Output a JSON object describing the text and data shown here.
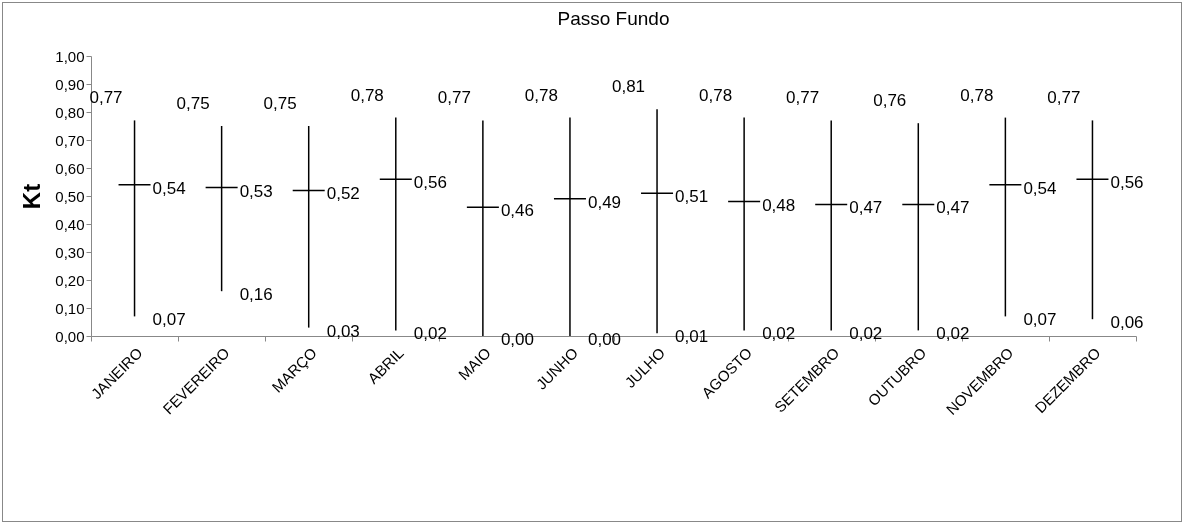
{
  "chart_data": {
    "type": "candlestick",
    "title": "Passo Fundo",
    "ylabel": "Kt",
    "categories": [
      "JANEIRO",
      "FEVEREIRO",
      "MARÇO",
      "ABRIL",
      "MAIO",
      "JUNHO",
      "JULHO",
      "AGOSTO",
      "SETEMBRO",
      "OUTUBRO",
      "NOVEMBRO",
      "DEZEMBRO"
    ],
    "ohlc": [
      [
        0.54,
        0.77,
        0.07,
        0.54
      ],
      [
        0.53,
        0.75,
        0.16,
        0.53
      ],
      [
        0.52,
        0.75,
        0.03,
        0.52
      ],
      [
        0.56,
        0.78,
        0.02,
        0.56
      ],
      [
        0.46,
        0.77,
        0.0,
        0.46
      ],
      [
        0.49,
        0.78,
        0.0,
        0.49
      ],
      [
        0.51,
        0.81,
        0.01,
        0.51
      ],
      [
        0.48,
        0.78,
        0.02,
        0.48
      ],
      [
        0.47,
        0.77,
        0.02,
        0.47
      ],
      [
        0.47,
        0.76,
        0.02,
        0.47
      ],
      [
        0.54,
        0.78,
        0.07,
        0.54
      ],
      [
        0.56,
        0.77,
        0.06,
        0.56
      ]
    ],
    "ylim": [
      0,
      1
    ],
    "yticks": [
      {
        "value": 0,
        "label": "0,00"
      },
      {
        "value": 0.1,
        "label": "0,10"
      },
      {
        "value": 0.2,
        "label": "0,20"
      },
      {
        "value": 0.3,
        "label": "0,30"
      },
      {
        "value": 0.4,
        "label": "0,40"
      },
      {
        "value": 0.5,
        "label": "0,50"
      },
      {
        "value": 0.6,
        "label": "0,60"
      },
      {
        "value": 0.7,
        "label": "0,70"
      },
      {
        "value": 0.8,
        "label": "0,80"
      },
      {
        "value": 0.9,
        "label": "0,90"
      },
      {
        "value": 1,
        "label": "1,00"
      }
    ],
    "value_labels": [
      [
        null,
        "0,77",
        "0,07",
        "0,54"
      ],
      [
        null,
        "0,75",
        "0,16",
        "0,53"
      ],
      [
        null,
        "0,75",
        "0,03",
        "0,52"
      ],
      [
        null,
        "0,78",
        "0,02",
        "0,56"
      ],
      [
        null,
        "0,77",
        "0,00",
        "0,46"
      ],
      [
        null,
        "0,78",
        "0,00",
        "0,49"
      ],
      [
        null,
        "0,81",
        "0,01",
        "0,51"
      ],
      [
        null,
        "0,78",
        "0,02",
        "0,48"
      ],
      [
        null,
        "0,77",
        "0,02",
        "0,47"
      ],
      [
        null,
        "0,76",
        "0,02",
        "0,47"
      ],
      [
        null,
        "0,78",
        "0,07",
        "0,54"
      ],
      [
        null,
        "0,77",
        "0,06",
        "0,56"
      ]
    ]
  }
}
